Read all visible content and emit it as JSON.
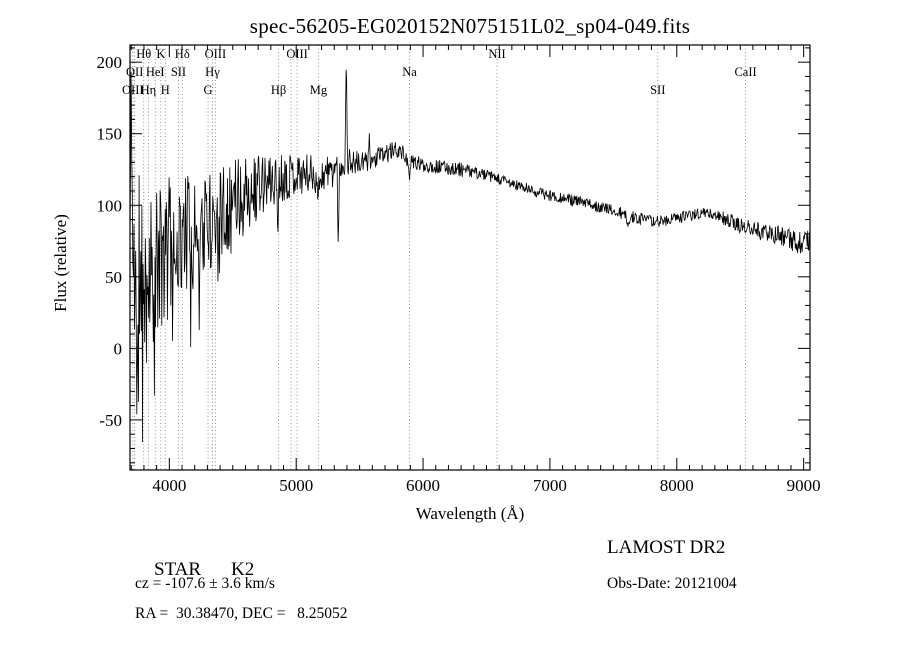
{
  "title": "spec-56205-EG020152N075151L02_sp04-049.fits",
  "chart_data": {
    "type": "line",
    "title": "spec-56205-EG020152N075151L02_sp04-049.fits",
    "xlabel": "Wavelength (Å)",
    "ylabel": "Flux (relative)",
    "xlim": [
      3690,
      9050
    ],
    "ylim": [
      -85,
      212
    ],
    "x_ticks": [
      4000,
      5000,
      6000,
      7000,
      8000,
      9000
    ],
    "x_minor_step": 100,
    "y_ticks": [
      -50,
      0,
      50,
      100,
      150,
      200
    ],
    "y_minor_step": 10,
    "grid": false,
    "legend": "none",
    "line_color": "#000000",
    "spectral_line_color": "#878787",
    "envelope_points_x_flux_sigma": [
      [
        3690,
        70,
        75
      ],
      [
        3740,
        55,
        70
      ],
      [
        3800,
        60,
        62
      ],
      [
        3850,
        62,
        58
      ],
      [
        3900,
        58,
        55
      ],
      [
        3950,
        62,
        52
      ],
      [
        4000,
        72,
        48
      ],
      [
        4100,
        78,
        44
      ],
      [
        4200,
        82,
        40
      ],
      [
        4300,
        88,
        36
      ],
      [
        4400,
        96,
        32
      ],
      [
        4500,
        103,
        30
      ],
      [
        4600,
        110,
        26
      ],
      [
        4700,
        113,
        23
      ],
      [
        4800,
        116,
        19
      ],
      [
        4900,
        120,
        17
      ],
      [
        5000,
        122,
        15
      ],
      [
        5100,
        122,
        14
      ],
      [
        5200,
        121,
        13
      ],
      [
        5300,
        125,
        12
      ],
      [
        5400,
        131,
        10
      ],
      [
        5500,
        129,
        8
      ],
      [
        5600,
        131,
        7
      ],
      [
        5700,
        136,
        7
      ],
      [
        5800,
        139,
        6
      ],
      [
        5900,
        131,
        6
      ],
      [
        6000,
        128,
        5
      ],
      [
        6100,
        127,
        5
      ],
      [
        6200,
        126,
        5
      ],
      [
        6300,
        125,
        5
      ],
      [
        6400,
        123,
        4
      ],
      [
        6500,
        121,
        4
      ],
      [
        6600,
        118,
        4
      ],
      [
        6700,
        115,
        4
      ],
      [
        6800,
        112,
        4
      ],
      [
        6900,
        109,
        4
      ],
      [
        7000,
        107,
        4
      ],
      [
        7100,
        105,
        4
      ],
      [
        7200,
        103,
        4
      ],
      [
        7300,
        101,
        4
      ],
      [
        7400,
        99,
        4
      ],
      [
        7500,
        96,
        4
      ],
      [
        7600,
        93,
        5
      ],
      [
        7700,
        91,
        4
      ],
      [
        7800,
        89,
        4
      ],
      [
        7900,
        89,
        4
      ],
      [
        8000,
        91,
        4
      ],
      [
        8100,
        93,
        4
      ],
      [
        8200,
        95,
        4
      ],
      [
        8300,
        93,
        4
      ],
      [
        8400,
        90,
        5
      ],
      [
        8500,
        86,
        5
      ],
      [
        8600,
        84,
        5
      ],
      [
        8700,
        81,
        6
      ],
      [
        8800,
        79,
        7
      ],
      [
        8900,
        75,
        8
      ],
      [
        9000,
        73,
        8
      ],
      [
        9050,
        75,
        8
      ]
    ],
    "feature_spikes": [
      {
        "x": 3700,
        "flux": 202,
        "width": 10
      },
      {
        "x": 3745,
        "flux": -62,
        "width": 9
      },
      {
        "x": 4855,
        "flux": 72,
        "width": 8
      },
      {
        "x": 5172,
        "flux": 100,
        "width": 10
      },
      {
        "x": 5332,
        "flux": 64,
        "width": 9
      },
      {
        "x": 5395,
        "flux": 208,
        "width": 10
      },
      {
        "x": 5577,
        "flux": 152,
        "width": 8
      },
      {
        "x": 5893,
        "flux": 116,
        "width": 12
      },
      {
        "x": 7615,
        "flux": 85,
        "width": 20
      },
      {
        "x": 8498,
        "flux": 80,
        "width": 8
      },
      {
        "x": 8542,
        "flux": 79,
        "width": 9
      },
      {
        "x": 8662,
        "flux": 75,
        "width": 9
      }
    ],
    "noise_seed": 11,
    "n_points": 1200,
    "spectral_lines": [
      {
        "label": "Hθ",
        "wavelength": 3798,
        "row": 0
      },
      {
        "label": "K",
        "wavelength": 3933,
        "row": 0
      },
      {
        "label": "Hδ",
        "wavelength": 4102,
        "row": 0
      },
      {
        "label": "OIII",
        "wavelength": 4363,
        "row": 0
      },
      {
        "label": "OIII",
        "wavelength": 5007,
        "row": 0
      },
      {
        "label": "",
        "wavelength": 4959,
        "row": 0
      },
      {
        "label": "NII",
        "wavelength": 6583,
        "row": 0
      },
      {
        "label": "OII",
        "wavelength": 3727,
        "row": 1
      },
      {
        "label": "HeI",
        "wavelength": 3889,
        "row": 1
      },
      {
        "label": "SII",
        "wavelength": 4072,
        "row": 1
      },
      {
        "label": "Hγ",
        "wavelength": 4340,
        "row": 1
      },
      {
        "label": "Na",
        "wavelength": 5893,
        "row": 1
      },
      {
        "label": "CaII",
        "wavelength": 8542,
        "row": 1
      },
      {
        "label": "OIII",
        "wavelength": 3712,
        "row": 2
      },
      {
        "label": "Hη",
        "wavelength": 3835,
        "row": 2
      },
      {
        "label": "H",
        "wavelength": 3968,
        "row": 2
      },
      {
        "label": "G",
        "wavelength": 4305,
        "row": 2
      },
      {
        "label": "Hβ",
        "wavelength": 4861,
        "row": 2
      },
      {
        "label": "Mg",
        "wavelength": 5175,
        "row": 2
      },
      {
        "label": "SII",
        "wavelength": 7850,
        "row": 2
      }
    ]
  },
  "footer": {
    "object_type": "STAR",
    "subclass": "K2",
    "survey": "LAMOST DR2",
    "cz": "cz = -107.6 ± 3.6 km/s",
    "obs_date": "Obs-Date: 20121004",
    "radec": "RA =  30.38470, DEC =   8.25052"
  }
}
